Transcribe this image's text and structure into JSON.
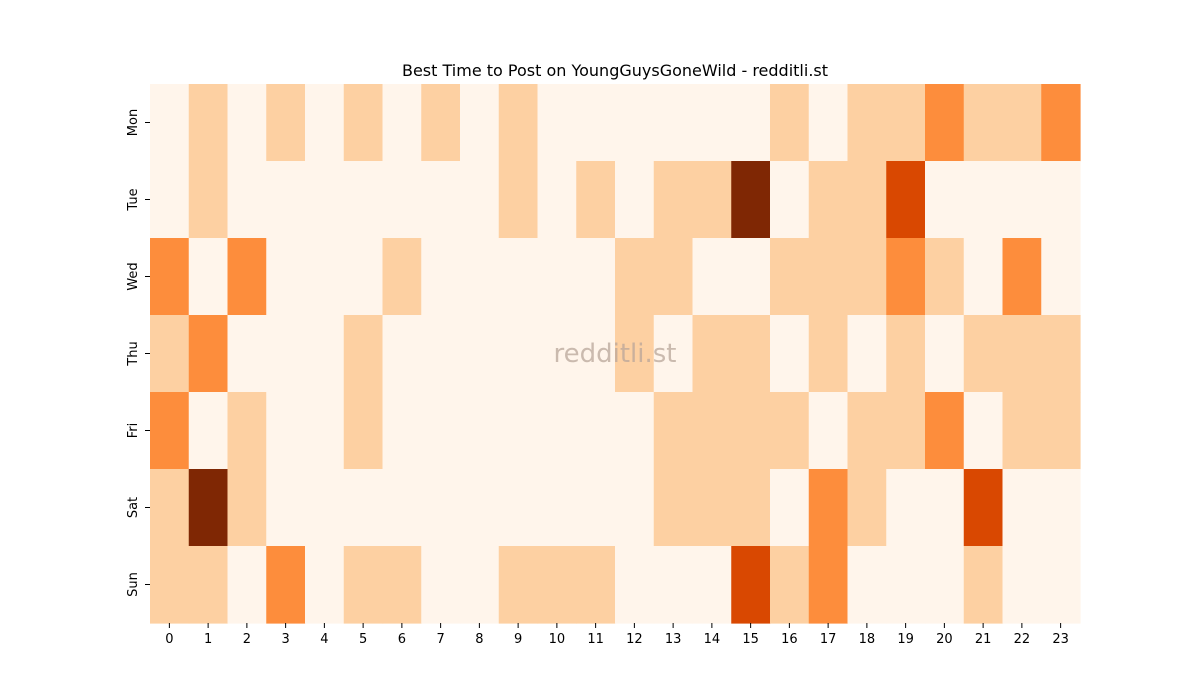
{
  "chart_data": {
    "type": "heatmap",
    "title": "Best Time to Post on YoungGuysGoneWild - redditli.st",
    "watermark": "redditli.st",
    "xlabel": "",
    "ylabel": "",
    "x_categories": [
      "0",
      "1",
      "2",
      "3",
      "4",
      "5",
      "6",
      "7",
      "8",
      "9",
      "10",
      "11",
      "12",
      "13",
      "14",
      "15",
      "16",
      "17",
      "18",
      "19",
      "20",
      "21",
      "22",
      "23"
    ],
    "y_categories": [
      "Mon",
      "Tue",
      "Wed",
      "Thu",
      "Fri",
      "Sat",
      "Sun"
    ],
    "values": [
      [
        0,
        1,
        0,
        1,
        0,
        1,
        0,
        1,
        0,
        1,
        0,
        0,
        0,
        0,
        0,
        0,
        1,
        0,
        1,
        1,
        2,
        1,
        1,
        2
      ],
      [
        0,
        1,
        0,
        0,
        0,
        0,
        0,
        0,
        0,
        1,
        0,
        1,
        0,
        1,
        1,
        4,
        0,
        1,
        1,
        3,
        0,
        0,
        0,
        0
      ],
      [
        2,
        0,
        2,
        0,
        0,
        0,
        1,
        0,
        0,
        0,
        0,
        0,
        1,
        1,
        0,
        0,
        1,
        1,
        1,
        2,
        1,
        0,
        2,
        0
      ],
      [
        1,
        2,
        0,
        0,
        0,
        1,
        0,
        0,
        0,
        0,
        0,
        0,
        1,
        0,
        1,
        1,
        0,
        1,
        0,
        1,
        0,
        1,
        1,
        1
      ],
      [
        2,
        0,
        1,
        0,
        0,
        1,
        0,
        0,
        0,
        0,
        0,
        0,
        0,
        1,
        1,
        1,
        1,
        0,
        1,
        1,
        2,
        0,
        1,
        1
      ],
      [
        1,
        4,
        1,
        0,
        0,
        0,
        0,
        0,
        0,
        0,
        0,
        0,
        0,
        1,
        1,
        1,
        0,
        2,
        1,
        0,
        0,
        3,
        0,
        0
      ],
      [
        1,
        1,
        0,
        2,
        0,
        1,
        1,
        0,
        0,
        1,
        1,
        1,
        0,
        0,
        0,
        3,
        1,
        2,
        0,
        0,
        0,
        1,
        0,
        0
      ]
    ],
    "color_levels": [
      "#fff5eb",
      "#fdd0a2",
      "#fd8d3c",
      "#d94801",
      "#7f2704"
    ],
    "colorbar": false,
    "grid": false,
    "legend": "none"
  }
}
